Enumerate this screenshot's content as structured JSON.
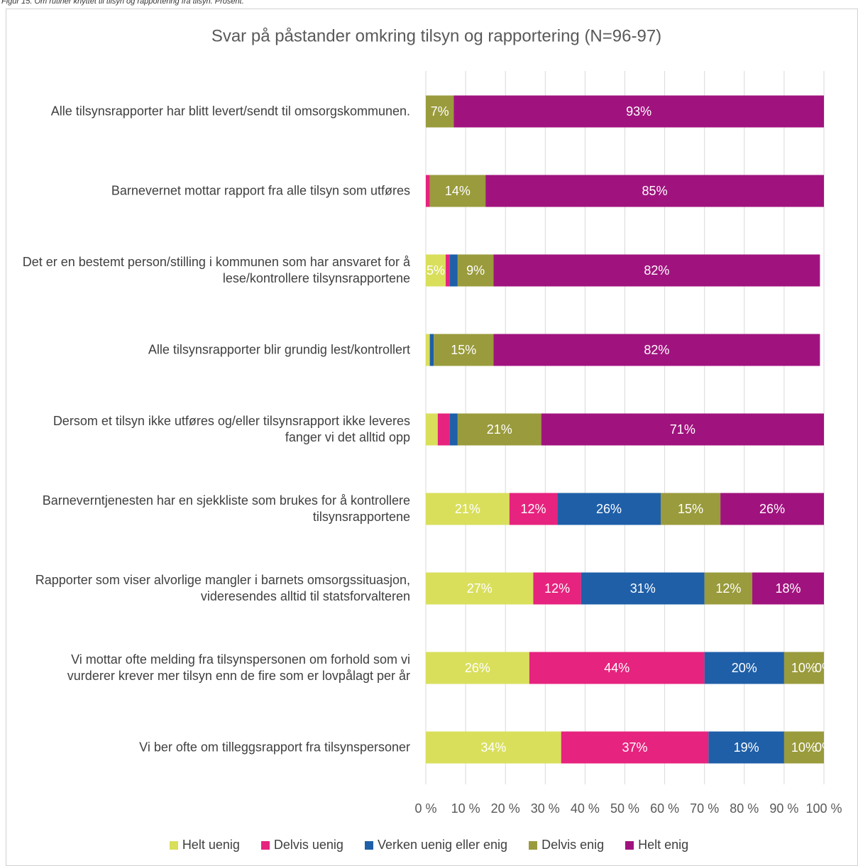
{
  "caption": "Figur 15. Om rutiner knyttet til tilsyn og rapportering fra tilsyn. Prosent.",
  "chart_data": {
    "type": "bar",
    "orientation": "horizontal",
    "stacked": true,
    "title": "Svar på påstander omkring tilsyn og rapportering (N=96-97)",
    "categories": [
      "Alle tilsynsrapporter har blitt levert/sendt til omsorgskommunen.",
      "Barnevernet mottar rapport fra alle tilsyn som utføres",
      "Det er en bestemt person/stilling i kommunen som har ansvaret for å lese/kontrollere tilsynsrapportene",
      "Alle tilsynsrapporter blir grundig lest/kontrollert",
      "Dersom et tilsyn ikke utføres og/eller tilsynsrapport ikke leveres fanger vi det alltid opp",
      "Barneverntjenesten har en sjekkliste som brukes for å kontrollere tilsynsrapportene",
      "Rapporter som viser alvorlige mangler i barnets omsorgssituasjon, videresendes alltid til statsforvalteren",
      "Vi mottar ofte melding fra tilsynspersonen om forhold som vi vurderer krever mer tilsyn enn de fire som er lovpålagt per år",
      "Vi ber ofte om tilleggsrapport fra tilsynspersoner"
    ],
    "series": [
      {
        "name": "Helt uenig",
        "color": "#d9df5b",
        "values": [
          0,
          0,
          5,
          1,
          3,
          21,
          27,
          26,
          34
        ],
        "value_labels": [
          null,
          null,
          "5%",
          null,
          null,
          "21%",
          "27%",
          "26%",
          "34%"
        ]
      },
      {
        "name": "Delvis uenig",
        "color": "#e6237e",
        "values": [
          0,
          1,
          1,
          0,
          3,
          12,
          12,
          44,
          37
        ],
        "value_labels": [
          null,
          null,
          null,
          null,
          null,
          "12%",
          "12%",
          "44%",
          "37%"
        ]
      },
      {
        "name": "Verken uenig eller enig",
        "color": "#1f5fa8",
        "values": [
          0,
          0,
          2,
          1,
          2,
          26,
          31,
          20,
          19
        ],
        "value_labels": [
          null,
          null,
          null,
          null,
          null,
          "26%",
          "31%",
          "20%",
          "19%"
        ]
      },
      {
        "name": "Delvis enig",
        "color": "#9a9b3c",
        "values": [
          7,
          14,
          9,
          15,
          21,
          15,
          12,
          10,
          10
        ],
        "value_labels": [
          "7%",
          "14%",
          "9%",
          "15%",
          "21%",
          "15%",
          "12%",
          "10%",
          "10%"
        ]
      },
      {
        "name": "Helt enig",
        "color": "#a0137e",
        "values": [
          93,
          85,
          82,
          82,
          71,
          26,
          18,
          0,
          0
        ],
        "value_labels": [
          "93%",
          "85%",
          "82%",
          "82%",
          "71%",
          "26%",
          "18%",
          "0%",
          "0%"
        ]
      }
    ],
    "xlim": [
      0,
      100
    ],
    "xticks": [
      {
        "value": 0,
        "label": "0 %"
      },
      {
        "value": 10,
        "label": "10 %"
      },
      {
        "value": 20,
        "label": "20 %"
      },
      {
        "value": 30,
        "label": "30 %"
      },
      {
        "value": 40,
        "label": "40 %"
      },
      {
        "value": 50,
        "label": "50 %"
      },
      {
        "value": 60,
        "label": "60 %"
      },
      {
        "value": 70,
        "label": "70 %"
      },
      {
        "value": 80,
        "label": "80 %"
      },
      {
        "value": 90,
        "label": "90 %"
      },
      {
        "value": 100,
        "label": "100 %"
      }
    ],
    "grid": true,
    "legend": "bottom"
  }
}
